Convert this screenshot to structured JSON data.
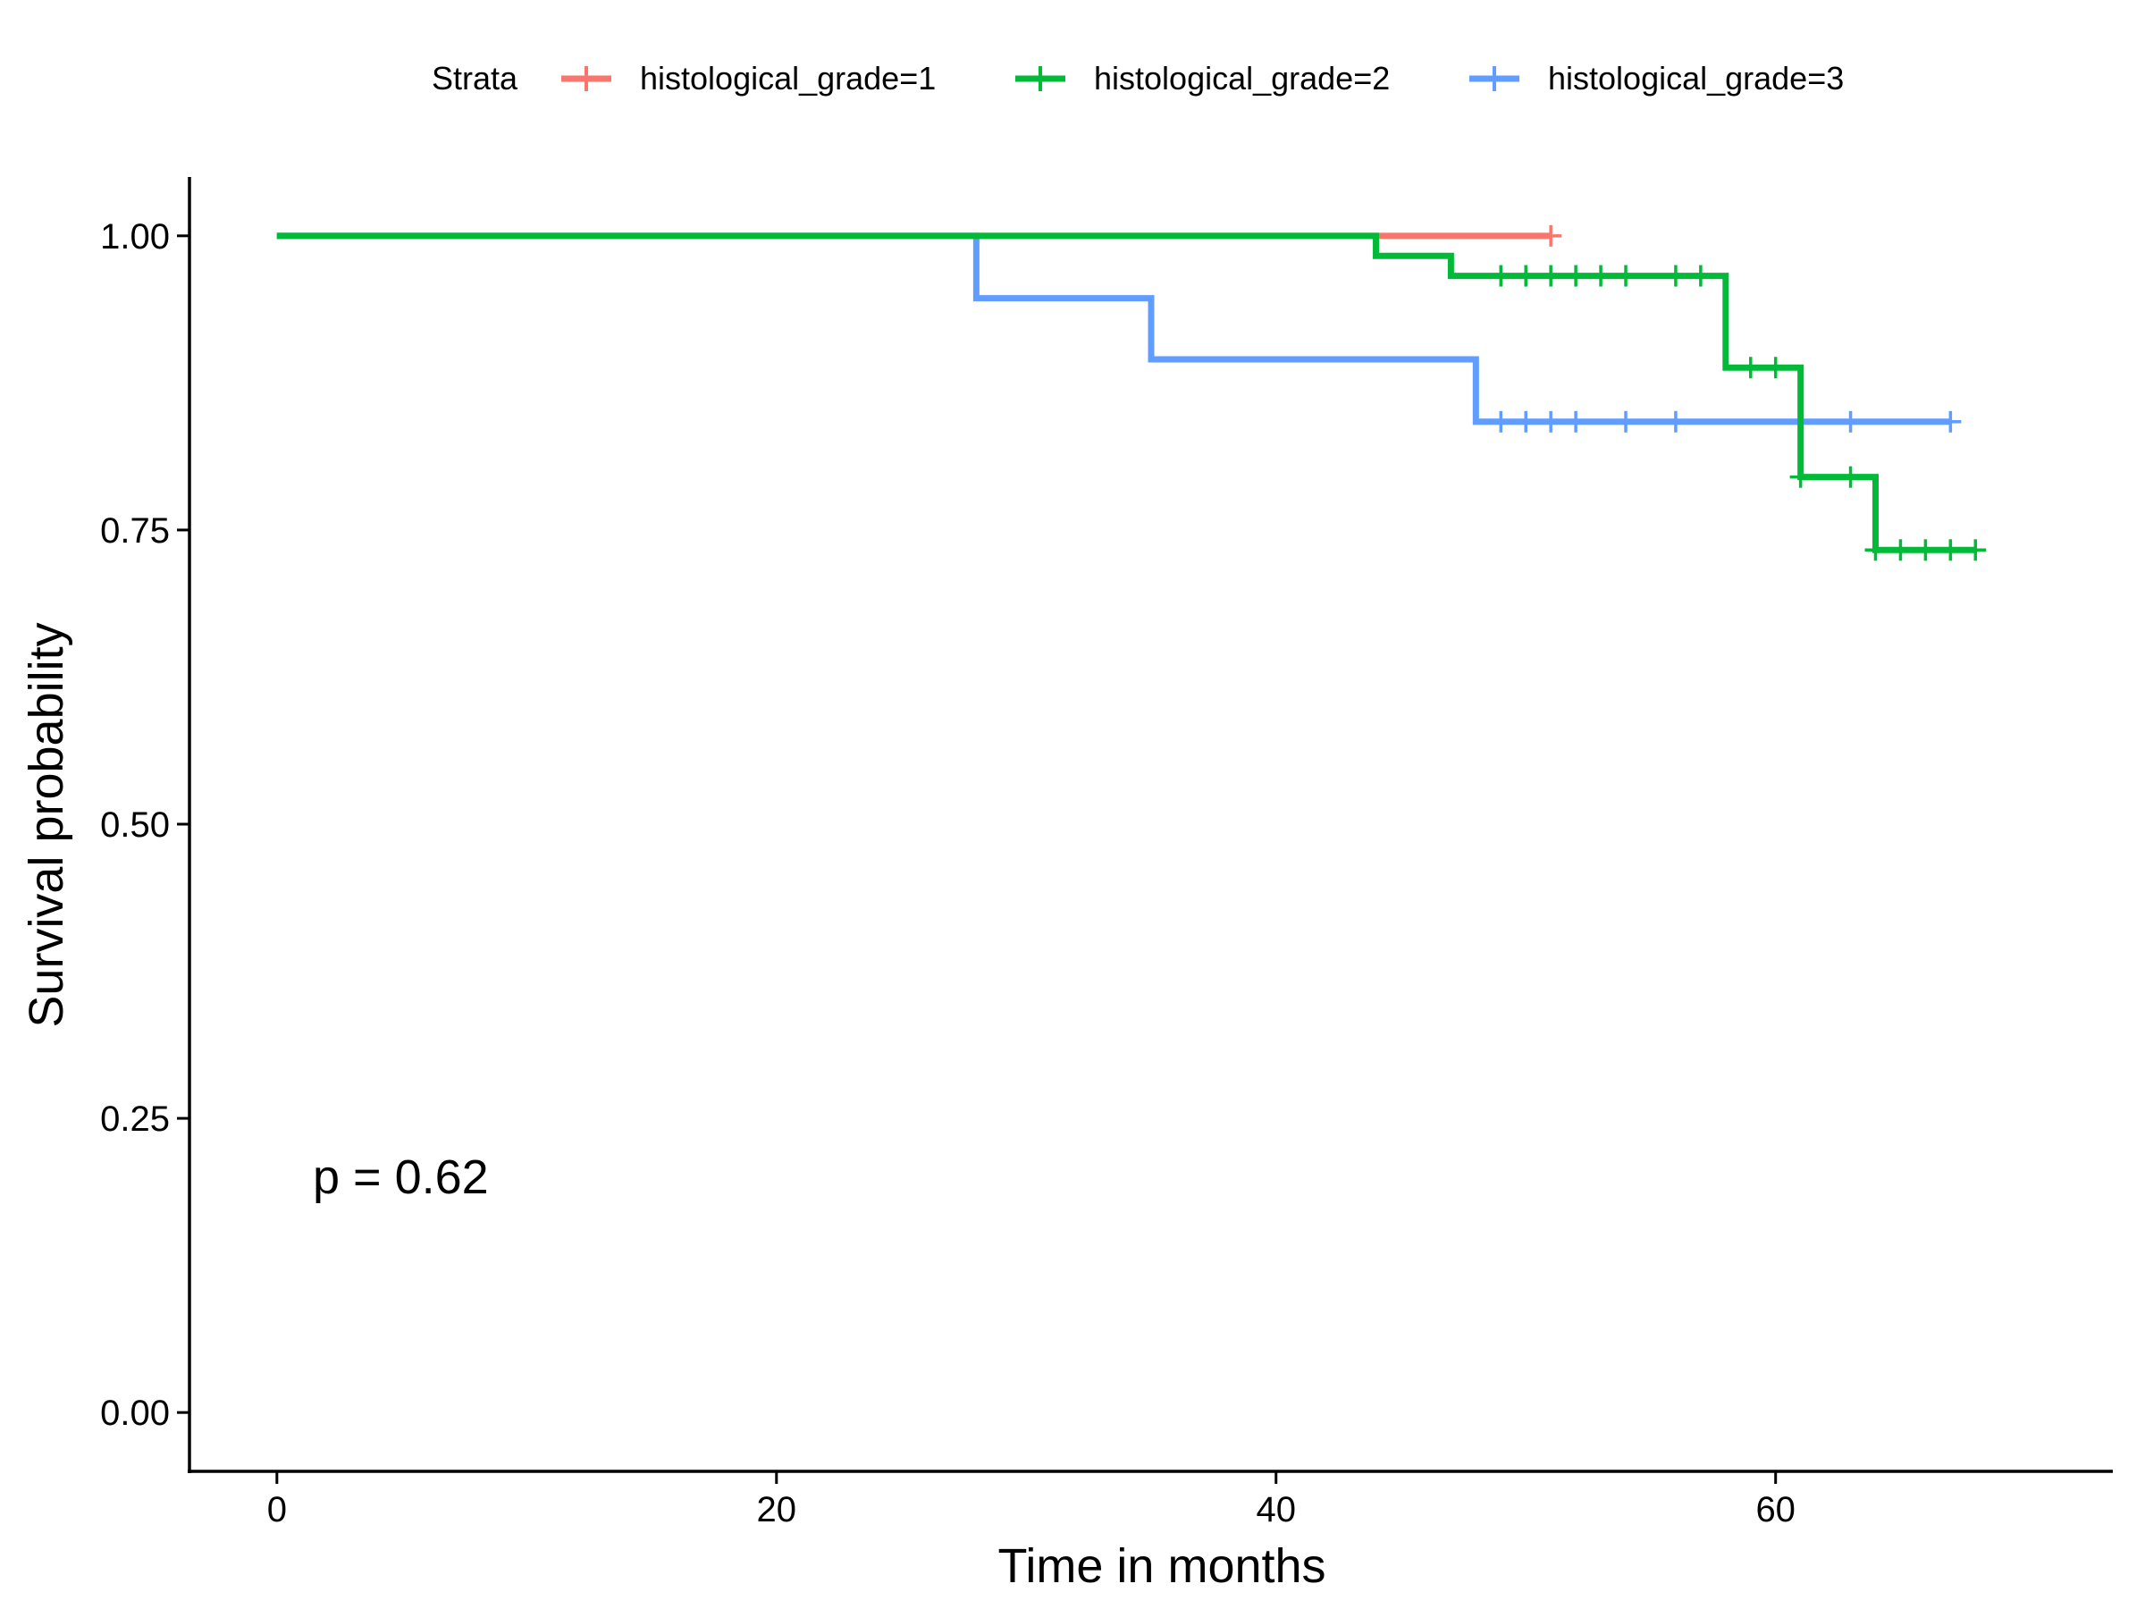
{
  "chart_data": {
    "type": "line",
    "subtype": "kaplan-meier step",
    "xlabel": "Time in months",
    "ylabel": "Survival probability",
    "xlim": [
      -3.5,
      73.5
    ],
    "ylim": [
      -0.05,
      1.05
    ],
    "x_ticks": [
      0,
      20,
      40,
      60
    ],
    "x_tick_labels": [
      "0",
      "20",
      "40",
      "60"
    ],
    "y_ticks": [
      0,
      0.25,
      0.5,
      0.75,
      1.0
    ],
    "y_tick_labels": [
      "0.00",
      "0.25",
      "0.50",
      "0.75",
      "1.00"
    ],
    "grid": false,
    "legend": {
      "title": "Strata",
      "position": "top"
    },
    "annotation": "p = 0.62",
    "series": [
      {
        "name": "histological_grade=1",
        "color": "#F8766D",
        "steps": [
          [
            0,
            1.0
          ],
          [
            51,
            1.0
          ]
        ],
        "censor_times": [
          51
        ]
      },
      {
        "name": "histological_grade=2",
        "color": "#00BA38",
        "steps": [
          [
            0,
            1.0
          ],
          [
            44,
            0.983
          ],
          [
            47,
            0.966
          ],
          [
            58,
            0.888
          ],
          [
            61,
            0.795
          ],
          [
            64,
            0.733
          ],
          [
            68,
            0.733
          ]
        ],
        "censor_times": [
          49,
          50,
          51,
          52,
          53,
          54,
          56,
          57,
          59,
          60,
          61,
          63,
          64,
          65,
          66,
          67,
          68
        ]
      },
      {
        "name": "histological_grade=3",
        "color": "#619CFF",
        "steps": [
          [
            0,
            1.0
          ],
          [
            28,
            0.947
          ],
          [
            35,
            0.895
          ],
          [
            48,
            0.842
          ],
          [
            67,
            0.842
          ]
        ],
        "censor_times": [
          49,
          50,
          51,
          52,
          54,
          56,
          61,
          63,
          67
        ]
      }
    ]
  }
}
